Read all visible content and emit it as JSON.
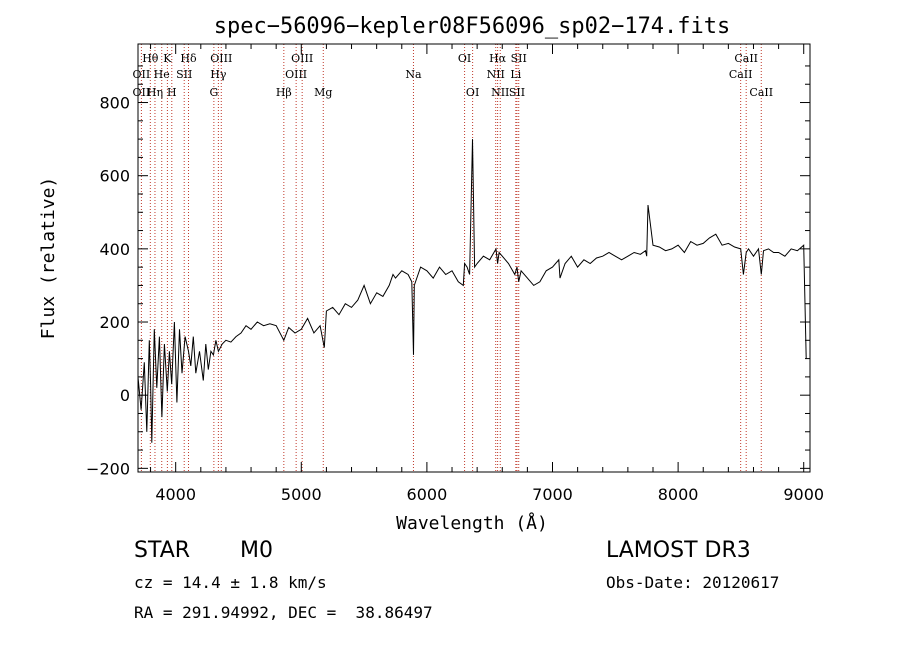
{
  "chart_data": {
    "type": "line",
    "title": "spec−56096−kepler08F56096_sp02−174.fits",
    "xlabel": "Wavelength (Å)",
    "ylabel": "Flux (relative)",
    "xlim": [
      3700,
      9050
    ],
    "ylim": [
      -210,
      960
    ],
    "x_ticks": [
      4000,
      5000,
      6000,
      7000,
      8000,
      9000
    ],
    "y_ticks": [
      -200,
      0,
      200,
      400,
      600,
      800
    ],
    "grid": false,
    "series": [
      {
        "name": "spectrum",
        "x": [
          3700,
          3725,
          3750,
          3770,
          3790,
          3800,
          3810,
          3830,
          3850,
          3870,
          3890,
          3910,
          3933,
          3950,
          3968,
          3990,
          4010,
          4030,
          4050,
          4075,
          4102,
          4120,
          4140,
          4160,
          4190,
          4220,
          4240,
          4260,
          4280,
          4300,
          4320,
          4340,
          4370,
          4400,
          4440,
          4480,
          4520,
          4560,
          4600,
          4650,
          4700,
          4750,
          4800,
          4861,
          4900,
          4950,
          5000,
          5050,
          5100,
          5150,
          5183,
          5200,
          5250,
          5300,
          5350,
          5400,
          5450,
          5500,
          5550,
          5600,
          5650,
          5700,
          5730,
          5750,
          5800,
          5850,
          5880,
          5893,
          5900,
          5920,
          5950,
          6000,
          6050,
          6100,
          6150,
          6200,
          6250,
          6290,
          6300,
          6320,
          6340,
          6363,
          6380,
          6400,
          6450,
          6500,
          6550,
          6563,
          6575,
          6600,
          6650,
          6700,
          6717,
          6731,
          6750,
          6800,
          6850,
          6900,
          6950,
          7000,
          7050,
          7060,
          7100,
          7150,
          7200,
          7250,
          7300,
          7350,
          7400,
          7450,
          7500,
          7550,
          7600,
          7650,
          7700,
          7740,
          7750,
          7760,
          7800,
          7850,
          7900,
          7950,
          8000,
          8050,
          8100,
          8150,
          8200,
          8250,
          8300,
          8350,
          8400,
          8450,
          8498,
          8520,
          8542,
          8560,
          8600,
          8640,
          8662,
          8680,
          8720,
          8760,
          8800,
          8850,
          8900,
          8950,
          9000,
          9020
        ],
        "values": [
          50,
          -40,
          90,
          -100,
          150,
          30,
          -130,
          180,
          20,
          160,
          -60,
          140,
          10,
          120,
          30,
          200,
          -20,
          180,
          60,
          160,
          120,
          80,
          160,
          60,
          120,
          40,
          140,
          70,
          120,
          110,
          150,
          120,
          140,
          150,
          145,
          160,
          170,
          190,
          180,
          200,
          190,
          195,
          190,
          150,
          185,
          170,
          180,
          210,
          170,
          190,
          130,
          230,
          240,
          220,
          250,
          240,
          260,
          300,
          250,
          280,
          270,
          300,
          330,
          320,
          340,
          330,
          310,
          110,
          300,
          320,
          350,
          340,
          320,
          350,
          330,
          340,
          310,
          300,
          360,
          350,
          330,
          700,
          350,
          360,
          380,
          370,
          400,
          360,
          390,
          380,
          360,
          330,
          350,
          310,
          340,
          320,
          300,
          310,
          340,
          350,
          370,
          320,
          360,
          380,
          350,
          370,
          360,
          375,
          380,
          390,
          380,
          370,
          380,
          390,
          385,
          395,
          380,
          520,
          410,
          405,
          395,
          400,
          410,
          390,
          420,
          410,
          415,
          430,
          440,
          410,
          415,
          405,
          400,
          330,
          390,
          400,
          380,
          400,
          330,
          395,
          400,
          390,
          390,
          380,
          400,
          395,
          410,
          100
        ]
      }
    ],
    "line_labels": [
      {
        "label": "Hθ",
        "x": 3798,
        "row": 1
      },
      {
        "label": "OII",
        "x": 3727,
        "row": 2
      },
      {
        "label": "OII",
        "x": 3727,
        "row": 3
      },
      {
        "label": "He",
        "x": 3889,
        "row": 2
      },
      {
        "label": "Hη",
        "x": 3835,
        "row": 3
      },
      {
        "label": "K",
        "x": 3934,
        "row": 1
      },
      {
        "label": "SII",
        "x": 4068,
        "row": 2
      },
      {
        "label": "H",
        "x": 3969,
        "row": 3
      },
      {
        "label": "Hδ",
        "x": 4102,
        "row": 1
      },
      {
        "label": "OIII",
        "x": 4363,
        "row": 1
      },
      {
        "label": "Hγ",
        "x": 4340,
        "row": 2
      },
      {
        "label": "G",
        "x": 4304,
        "row": 3
      },
      {
        "label": "OIII",
        "x": 5007,
        "row": 1
      },
      {
        "label": "OIII",
        "x": 4959,
        "row": 2
      },
      {
        "label": "Hβ",
        "x": 4861,
        "row": 3
      },
      {
        "label": "Mg",
        "x": 5175,
        "row": 3
      },
      {
        "label": "Na",
        "x": 5893,
        "row": 2
      },
      {
        "label": "OI",
        "x": 6300,
        "row": 1
      },
      {
        "label": "OI",
        "x": 6364,
        "row": 3
      },
      {
        "label": "Hα",
        "x": 6563,
        "row": 1
      },
      {
        "label": "SII",
        "x": 6731,
        "row": 1
      },
      {
        "label": "NII",
        "x": 6548,
        "row": 2
      },
      {
        "label": "Li",
        "x": 6708,
        "row": 2
      },
      {
        "label": "NII",
        "x": 6584,
        "row": 3
      },
      {
        "label": "SII",
        "x": 6717,
        "row": 3
      },
      {
        "label": "CaII",
        "x": 8542,
        "row": 1
      },
      {
        "label": "CaII",
        "x": 8498,
        "row": 2
      },
      {
        "label": "CaII",
        "x": 8662,
        "row": 3
      }
    ],
    "dotted_lines": [
      3727,
      3798,
      3835,
      3889,
      3934,
      3969,
      4068,
      4102,
      4304,
      4340,
      4363,
      4861,
      4959,
      5007,
      5175,
      5893,
      6300,
      6364,
      6548,
      6563,
      6584,
      6708,
      6717,
      6731,
      8498,
      8542,
      8662
    ]
  },
  "info": {
    "object_type": "STAR",
    "subclass": "M0",
    "survey": "LAMOST DR3",
    "cz": "cz = 14.4 ± 1.8 km/s",
    "obs_date": "Obs-Date: 20120617",
    "coords": "RA = 291.94992, DEC =  38.86497"
  }
}
